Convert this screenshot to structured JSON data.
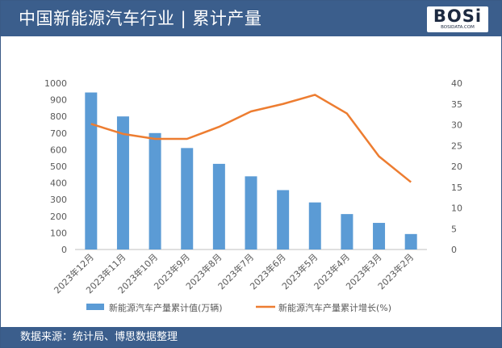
{
  "header": {
    "title": "中国新能源汽车行业 | 累计产量",
    "logo_text": "BOSi",
    "logo_sub": "BOSIDATA.COM"
  },
  "footer": {
    "source": "数据来源：统计局、博思数据整理"
  },
  "colors": {
    "header_bg": "#3b5e8c",
    "bar": "#5b9bd5",
    "line": "#ed7d31",
    "axis_text": "#595959",
    "grid": "#d9d9d9"
  },
  "chart_data": {
    "type": "bar",
    "categories": [
      "2023年12月",
      "2023年11月",
      "2023年10月",
      "2023年9月",
      "2023年8月",
      "2023年7月",
      "2023年6月",
      "2023年5月",
      "2023年4月",
      "2023年3月",
      "2023年2月"
    ],
    "series": [
      {
        "name": "新能源汽车产量累计值(万辆)",
        "type": "bar",
        "axis": "left",
        "values": [
          944,
          800,
          700,
          610,
          515,
          440,
          357,
          283,
          213,
          160,
          93
        ]
      },
      {
        "name": "新能源汽车产量累计增长(%)",
        "type": "line",
        "axis": "right",
        "values": [
          30.2,
          27.8,
          26.6,
          26.6,
          29.5,
          33.2,
          35.0,
          37.2,
          32.7,
          22.4,
          16.2
        ]
      }
    ],
    "ylim": [
      0,
      1000
    ],
    "y2lim": [
      0,
      40
    ],
    "yticks": [
      "0",
      "100",
      "200",
      "300",
      "400",
      "500",
      "600",
      "700",
      "800",
      "900",
      "1000"
    ],
    "y2ticks": [
      "0",
      "5",
      "10",
      "15",
      "20",
      "25",
      "30",
      "35",
      "40"
    ],
    "grid": false,
    "legend": "bottom"
  }
}
